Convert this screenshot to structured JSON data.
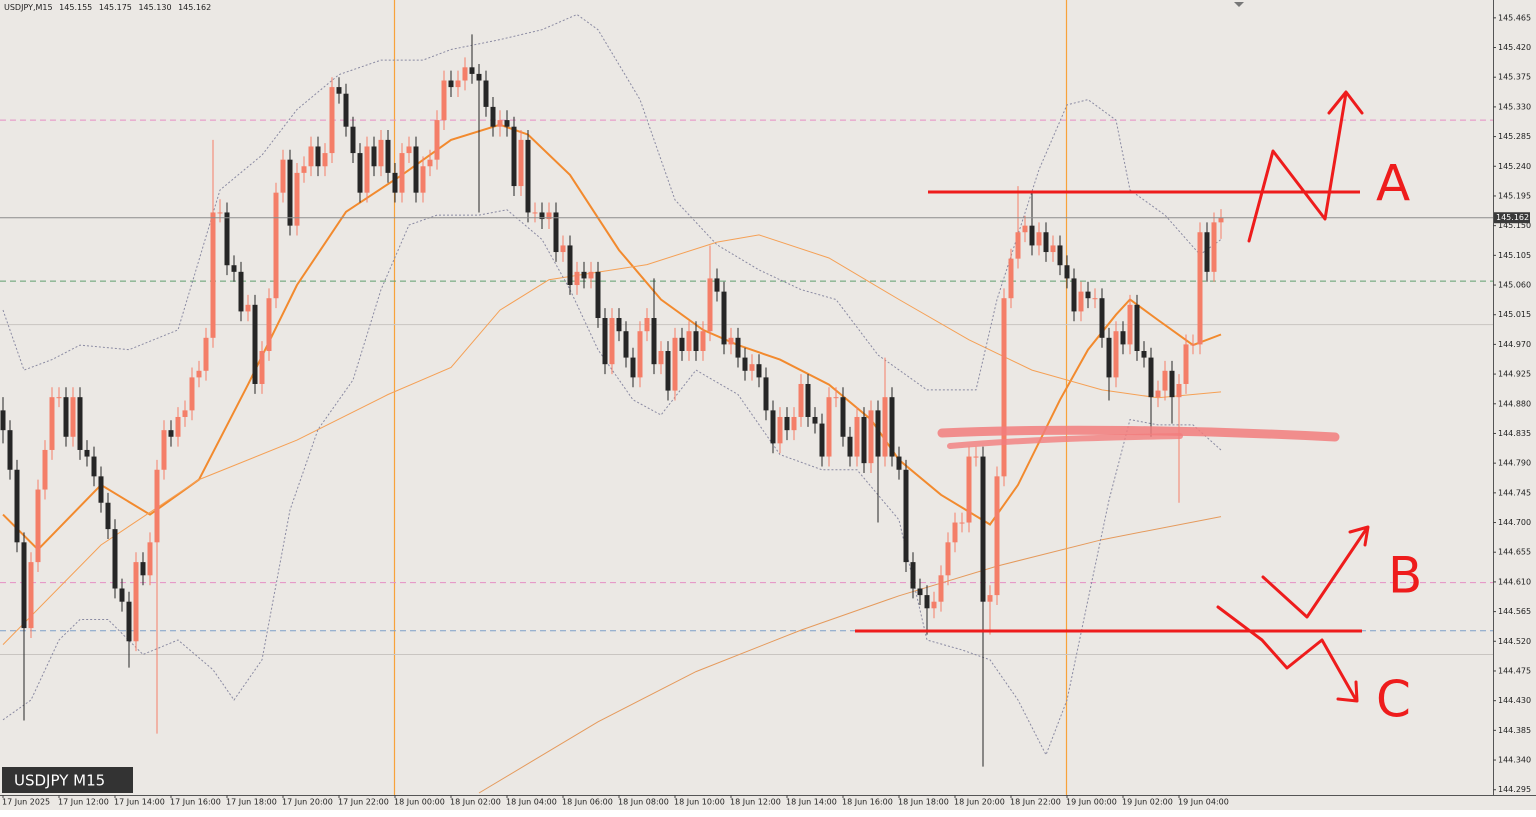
{
  "chart_data": {
    "type": "candlestick",
    "symbol": "USDJPY,M15",
    "ohlc_labels": [
      "145.155",
      "145.175",
      "145.130",
      "145.162"
    ],
    "watermark": "USDJPY M15",
    "annotations": [
      "A",
      "B",
      "C"
    ],
    "grid": false,
    "colors": {
      "up": "#f47e68",
      "down": "#262626",
      "price_line": "#8c8c8c",
      "price_box": "#3a3a3a"
    },
    "ylim": [
      144.287,
      145.489
    ],
    "yticks": [
      145.465,
      {
        "value": 145.42,
        "label": "145.420"
      },
      145.375,
      {
        "value": 145.33,
        "label": "145.330"
      },
      145.285,
      {
        "value": 145.24,
        "label": "145.240"
      },
      145.195,
      {
        "value": 145.15,
        "label": "145.150"
      },
      145.105,
      {
        "value": 145.06,
        "label": "145.060"
      },
      145.015,
      {
        "value": 144.97,
        "label": "144.970"
      },
      144.925,
      {
        "value": 144.88,
        "label": "144.880"
      },
      144.835,
      {
        "value": 144.79,
        "label": "144.790"
      },
      144.745,
      {
        "value": 144.7,
        "label": "144.700"
      },
      144.655,
      {
        "value": 144.61,
        "label": "144.610"
      },
      144.565,
      {
        "value": 144.52,
        "label": "144.520"
      },
      144.475,
      {
        "value": 144.43,
        "label": "144.430"
      },
      144.385,
      {
        "value": 144.34,
        "label": "144.340"
      },
      144.295
    ],
    "categories": [
      "17 Jun 2025",
      null,
      null,
      null,
      null,
      null,
      null,
      null,
      "17 Jun 12:00",
      null,
      null,
      null,
      null,
      null,
      null,
      null,
      "17 Jun 14:00",
      null,
      null,
      null,
      null,
      null,
      null,
      null,
      "17 Jun 16:00",
      null,
      null,
      null,
      null,
      null,
      null,
      null,
      "17 Jun 18:00",
      null,
      null,
      null,
      null,
      null,
      null,
      null,
      "17 Jun 20:00",
      null,
      null,
      null,
      null,
      null,
      null,
      null,
      "17 Jun 22:00",
      null,
      null,
      null,
      null,
      null,
      null,
      null,
      "18 Jun 00:00",
      null,
      null,
      null,
      null,
      null,
      null,
      null,
      "18 Jun 02:00",
      null,
      null,
      null,
      null,
      null,
      null,
      null,
      "18 Jun 04:00",
      null,
      null,
      null,
      null,
      null,
      null,
      null,
      "18 Jun 06:00",
      null,
      null,
      null,
      null,
      null,
      null,
      null,
      "18 Jun 08:00",
      null,
      null,
      null,
      null,
      null,
      null,
      null,
      "18 Jun 10:00",
      null,
      null,
      null,
      null,
      null,
      null,
      null,
      "18 Jun 12:00",
      null,
      null,
      null,
      null,
      null,
      null,
      null,
      "18 Jun 14:00",
      null,
      null,
      null,
      null,
      null,
      null,
      null,
      "18 Jun 16:00",
      null,
      null,
      null,
      null,
      null,
      null,
      null,
      "18 Jun 18:00",
      null,
      null,
      null,
      null,
      null,
      null,
      null,
      "18 Jun 20:00",
      null,
      null,
      null,
      null,
      null,
      null,
      null,
      "18 Jun 22:00",
      null,
      null,
      null,
      null,
      null,
      null,
      null,
      "19 Jun 00:00",
      null,
      null,
      null,
      null,
      null,
      null,
      null,
      "19 Jun 02:00",
      null,
      null,
      null,
      null,
      null,
      null,
      null,
      "19 Jun 04:00",
      null,
      null,
      null,
      null,
      null,
      null
    ],
    "open": [
      144.87,
      144.84,
      144.78,
      144.67,
      144.54,
      144.64,
      144.75,
      144.81,
      144.89,
      144.89,
      144.83,
      144.89,
      144.81,
      144.8,
      144.77,
      144.73,
      144.69,
      144.6,
      144.58,
      144.52,
      144.64,
      144.62,
      144.67,
      144.78,
      144.84,
      144.83,
      144.86,
      144.87,
      144.92,
      144.93,
      144.98,
      145.17,
      145.17,
      145.09,
      145.08,
      145.02,
      145.03,
      144.91,
      144.96,
      145.04,
      145.2,
      145.25,
      145.15,
      145.23,
      145.24,
      145.27,
      145.24,
      145.26,
      145.36,
      145.35,
      145.3,
      145.26,
      145.2,
      145.27,
      145.24,
      145.28,
      145.23,
      145.2,
      145.26,
      145.27,
      145.2,
      145.24,
      145.25,
      145.31,
      145.37,
      145.36,
      145.37,
      145.39,
      145.38,
      145.37,
      145.33,
      145.3,
      145.31,
      145.3,
      145.21,
      145.28,
      145.17,
      145.17,
      145.16,
      145.17,
      145.11,
      145.12,
      145.06,
      145.08,
      145.07,
      145.08,
      145.01,
      144.94,
      145.01,
      144.99,
      144.95,
      144.92,
      144.99,
      145.01,
      144.94,
      144.96,
      144.9,
      144.98,
      144.96,
      144.99,
      144.96,
      144.99,
      145.07,
      145.05,
      144.97,
      144.98,
      144.95,
      144.93,
      144.94,
      144.92,
      144.87,
      144.82,
      144.86,
      144.84,
      144.86,
      144.91,
      144.86,
      144.85,
      144.8,
      144.89,
      144.89,
      144.83,
      144.8,
      144.86,
      144.79,
      144.87,
      144.8,
      144.89,
      144.8,
      144.78,
      144.64,
      144.6,
      144.59,
      144.57,
      144.58,
      144.62,
      144.67,
      144.7,
      144.7,
      144.8,
      144.8,
      144.58,
      144.59,
      144.77,
      145.04,
      145.1,
      145.14,
      145.15,
      145.12,
      145.14,
      145.11,
      145.12,
      145.09,
      145.07,
      145.02,
      145.05,
      145.04,
      145.04,
      144.98,
      144.92,
      144.99,
      144.97,
      145.03,
      144.96,
      144.95,
      144.89,
      144.9,
      144.93,
      144.89,
      144.91,
      144.97,
      144.97,
      145.14,
      145.08,
      145.155
    ],
    "high": [
      144.89,
      144.855,
      144.795,
      144.685,
      144.655,
      144.765,
      144.825,
      144.905,
      144.905,
      144.905,
      144.905,
      144.905,
      144.825,
      144.815,
      144.785,
      144.745,
      144.705,
      144.615,
      144.595,
      144.655,
      144.655,
      144.685,
      144.795,
      144.855,
      144.855,
      144.875,
      144.885,
      144.935,
      144.945,
      144.995,
      145.28,
      145.19,
      145.185,
      145.105,
      145.095,
      145.045,
      145.045,
      144.975,
      145.055,
      145.215,
      145.265,
      145.265,
      145.245,
      145.255,
      145.285,
      145.285,
      145.275,
      145.375,
      145.375,
      145.365,
      145.315,
      145.275,
      145.285,
      145.285,
      145.295,
      145.295,
      145.245,
      145.275,
      145.285,
      145.285,
      145.255,
      145.265,
      145.325,
      145.385,
      145.385,
      145.385,
      145.405,
      145.44,
      145.395,
      145.385,
      145.345,
      145.325,
      145.325,
      145.315,
      145.295,
      145.295,
      145.185,
      145.185,
      145.185,
      145.185,
      145.135,
      145.135,
      145.095,
      145.095,
      145.095,
      145.095,
      145.025,
      145.025,
      145.025,
      145.005,
      144.965,
      145.005,
      145.025,
      145.07,
      144.975,
      144.975,
      144.995,
      144.995,
      145.005,
      145.005,
      145.005,
      145.12,
      145.085,
      145.065,
      144.995,
      144.995,
      144.965,
      144.955,
      144.955,
      144.935,
      144.885,
      144.875,
      144.875,
      144.875,
      144.925,
      144.925,
      144.875,
      144.865,
      144.905,
      144.905,
      144.905,
      144.845,
      144.875,
      144.875,
      144.885,
      144.885,
      144.95,
      144.905,
      144.815,
      144.795,
      144.655,
      144.615,
      144.605,
      144.595,
      144.635,
      144.685,
      144.715,
      144.715,
      144.815,
      144.815,
      144.815,
      144.605,
      144.785,
      145.055,
      145.115,
      145.21,
      145.165,
      145.2,
      145.155,
      145.155,
      145.135,
      145.135,
      145.105,
      145.085,
      145.065,
      145.065,
      145.055,
      145.055,
      144.995,
      145.005,
      145.005,
      145.045,
      145.045,
      144.975,
      144.965,
      144.915,
      144.945,
      144.945,
      144.925,
      144.985,
      144.985,
      145.155,
      145.155,
      145.17,
      145.175
    ],
    "low": [
      144.82,
      144.765,
      144.655,
      144.4,
      144.525,
      144.625,
      144.735,
      144.795,
      144.875,
      144.815,
      144.815,
      144.795,
      144.785,
      144.755,
      144.715,
      144.675,
      144.585,
      144.565,
      144.48,
      144.505,
      144.605,
      144.605,
      144.38,
      144.765,
      144.815,
      144.815,
      144.845,
      144.855,
      144.905,
      144.915,
      144.965,
      145.155,
      145.075,
      145.065,
      145.005,
      145.005,
      144.895,
      144.895,
      144.945,
      145.025,
      145.185,
      145.135,
      145.135,
      145.215,
      145.225,
      145.225,
      145.225,
      145.245,
      145.335,
      145.285,
      145.245,
      145.185,
      145.185,
      145.225,
      145.225,
      145.215,
      145.185,
      145.185,
      145.245,
      145.185,
      145.185,
      145.225,
      145.235,
      145.295,
      145.345,
      145.345,
      145.355,
      145.365,
      145.17,
      145.315,
      145.285,
      145.285,
      145.285,
      145.195,
      145.195,
      145.155,
      145.155,
      145.145,
      145.145,
      145.095,
      145.095,
      145.045,
      145.045,
      145.055,
      145.055,
      144.995,
      144.925,
      144.925,
      144.975,
      144.935,
      144.905,
      144.905,
      144.975,
      144.925,
      144.925,
      144.885,
      144.885,
      144.945,
      144.945,
      144.945,
      144.945,
      144.975,
      145.035,
      144.955,
      144.955,
      144.935,
      144.915,
      144.915,
      144.905,
      144.855,
      144.805,
      144.805,
      144.825,
      144.825,
      144.845,
      144.845,
      144.835,
      144.785,
      144.785,
      144.875,
      144.815,
      144.785,
      144.785,
      144.775,
      144.775,
      144.7,
      144.785,
      144.785,
      144.765,
      144.625,
      144.585,
      144.575,
      144.53,
      144.555,
      144.565,
      144.605,
      144.655,
      144.685,
      144.685,
      144.785,
      144.33,
      144.53,
      144.575,
      144.755,
      145.025,
      145.085,
      145.125,
      145.105,
      145.105,
      145.095,
      145.095,
      145.075,
      145.055,
      145.005,
      145.005,
      145.025,
      145.025,
      144.965,
      144.885,
      144.905,
      144.955,
      144.955,
      144.945,
      144.935,
      144.83,
      144.875,
      144.885,
      144.85,
      144.73,
      144.895,
      144.955,
      144.955,
      145.065,
      145.065,
      145.13
    ],
    "close": [
      144.84,
      144.78,
      144.67,
      144.54,
      144.64,
      144.75,
      144.81,
      144.89,
      144.89,
      144.83,
      144.89,
      144.81,
      144.8,
      144.77,
      144.73,
      144.69,
      144.6,
      144.58,
      144.52,
      144.64,
      144.62,
      144.67,
      144.78,
      144.84,
      144.83,
      144.86,
      144.87,
      144.92,
      144.93,
      144.98,
      145.17,
      145.17,
      145.09,
      145.08,
      145.02,
      145.03,
      144.91,
      144.96,
      145.04,
      145.2,
      145.25,
      145.15,
      145.23,
      145.24,
      145.27,
      145.24,
      145.26,
      145.36,
      145.35,
      145.3,
      145.26,
      145.2,
      145.27,
      145.24,
      145.28,
      145.23,
      145.2,
      145.26,
      145.27,
      145.2,
      145.24,
      145.25,
      145.31,
      145.37,
      145.36,
      145.37,
      145.39,
      145.38,
      145.37,
      145.33,
      145.3,
      145.31,
      145.3,
      145.21,
      145.28,
      145.17,
      145.17,
      145.16,
      145.17,
      145.11,
      145.12,
      145.06,
      145.08,
      145.07,
      145.08,
      145.01,
      144.94,
      145.01,
      144.99,
      144.95,
      144.92,
      144.99,
      145.01,
      144.94,
      144.96,
      144.9,
      144.98,
      144.96,
      144.99,
      144.96,
      144.99,
      145.07,
      145.05,
      144.97,
      144.98,
      144.95,
      144.93,
      144.94,
      144.92,
      144.87,
      144.82,
      144.86,
      144.84,
      144.86,
      144.91,
      144.86,
      144.85,
      144.8,
      144.89,
      144.89,
      144.83,
      144.8,
      144.86,
      144.79,
      144.87,
      144.8,
      144.89,
      144.8,
      144.78,
      144.64,
      144.6,
      144.59,
      144.57,
      144.58,
      144.62,
      144.67,
      144.7,
      144.7,
      144.8,
      144.8,
      144.58,
      144.59,
      144.77,
      145.04,
      145.1,
      145.14,
      145.15,
      145.12,
      145.14,
      145.11,
      145.12,
      145.09,
      145.07,
      145.02,
      145.05,
      145.04,
      145.04,
      144.98,
      144.92,
      144.99,
      144.97,
      145.03,
      144.96,
      144.95,
      144.89,
      144.9,
      144.93,
      144.89,
      144.91,
      144.97,
      144.97,
      145.14,
      145.08,
      145.155,
      145.162
    ],
    "hlines": [
      {
        "value": 145.31,
        "color": "#e58fc4",
        "dash": true
      },
      {
        "value": 145.066,
        "color": "#5f9e6e",
        "dash": true
      },
      {
        "value": 145.0,
        "color": "#c9c5c1",
        "dash": false
      },
      {
        "value": 144.609,
        "color": "#e58fc4",
        "dash": true
      },
      {
        "value": 144.536,
        "color": "#7ea0c8",
        "dash": true
      },
      {
        "value": 144.5,
        "color": "#c9c5c1",
        "dash": false
      }
    ],
    "indicators": [
      {
        "color": "#f28a2e",
        "width": 2,
        "line_style": "solid",
        "x": [
          0,
          5,
          14,
          21,
          28,
          35,
          42,
          49,
          57,
          64,
          71,
          75,
          81,
          88,
          94,
          100,
          105,
          111,
          118,
          124,
          128,
          134,
          141,
          145,
          151,
          155,
          159,
          161,
          165,
          170,
          174
        ],
        "values": [
          144.712,
          144.659,
          144.757,
          144.712,
          144.765,
          144.909,
          145.06,
          145.171,
          145.227,
          145.28,
          145.303,
          145.288,
          145.227,
          145.113,
          145.038,
          144.992,
          144.969,
          144.947,
          144.909,
          144.856,
          144.795,
          144.742,
          144.697,
          144.757,
          144.886,
          144.962,
          145.015,
          145.038,
          145.007,
          144.969,
          144.985
        ]
      },
      {
        "color": "#f5a055",
        "width": 1,
        "line_style": "solid",
        "x": [
          0,
          14,
          28,
          42,
          55,
          64,
          71,
          78,
          92,
          102,
          108,
          118,
          128,
          138,
          147,
          157,
          165,
          174
        ],
        "values": [
          144.515,
          144.666,
          144.765,
          144.825,
          144.894,
          144.935,
          145.022,
          145.068,
          145.091,
          145.125,
          145.136,
          145.101,
          145.038,
          144.977,
          144.931,
          144.901,
          144.889,
          144.898
        ]
      },
      {
        "color": "#e59a5c",
        "width": 1,
        "line_style": "solid",
        "x": [
          68,
          85,
          99,
          114,
          128,
          142,
          157,
          174
        ],
        "values": [
          144.29,
          144.398,
          144.474,
          144.537,
          144.589,
          144.634,
          144.674,
          144.709
        ]
      },
      {
        "color": "#8a8aa2",
        "width": 1,
        "line_style": "dotted",
        "x": [
          0,
          3,
          7,
          11,
          18,
          25,
          31,
          37,
          42,
          48,
          54,
          60,
          64,
          71,
          77,
          82,
          85,
          91,
          96,
          102,
          108,
          114,
          119,
          125,
          132,
          139,
          142,
          148,
          152,
          155,
          159,
          161,
          166,
          171,
          174
        ],
        "values": [
          145.022,
          144.931,
          144.947,
          144.969,
          144.962,
          144.992,
          145.204,
          145.257,
          145.326,
          145.379,
          145.401,
          145.401,
          145.417,
          145.432,
          145.447,
          145.47,
          145.447,
          145.341,
          145.189,
          145.121,
          145.083,
          145.053,
          145.038,
          144.954,
          144.901,
          144.901,
          145.038,
          145.235,
          145.333,
          145.341,
          145.31,
          145.204,
          145.166,
          145.106,
          145.129
        ]
      },
      {
        "color": "#8a8aa2",
        "width": 1,
        "line_style": "dotted",
        "x": [
          0,
          4,
          8,
          11,
          15,
          20,
          25,
          30,
          33,
          37,
          41,
          45,
          50,
          54,
          58,
          62,
          68,
          72,
          77,
          81,
          85,
          90,
          94,
          99,
          105,
          111,
          117,
          122,
          128,
          132,
          137,
          141,
          145,
          149,
          152,
          155,
          158,
          161,
          165,
          170,
          174
        ],
        "values": [
          144.401,
          144.431,
          144.522,
          144.553,
          144.553,
          144.5,
          144.522,
          144.477,
          144.431,
          144.492,
          144.719,
          144.841,
          144.916,
          145.053,
          145.151,
          145.166,
          145.166,
          145.174,
          145.129,
          145.053,
          144.962,
          144.886,
          144.863,
          144.931,
          144.894,
          144.803,
          144.78,
          144.78,
          144.704,
          144.522,
          144.507,
          144.492,
          144.431,
          144.348,
          144.431,
          144.583,
          144.734,
          144.856,
          144.848,
          144.848,
          144.81
        ]
      }
    ]
  }
}
